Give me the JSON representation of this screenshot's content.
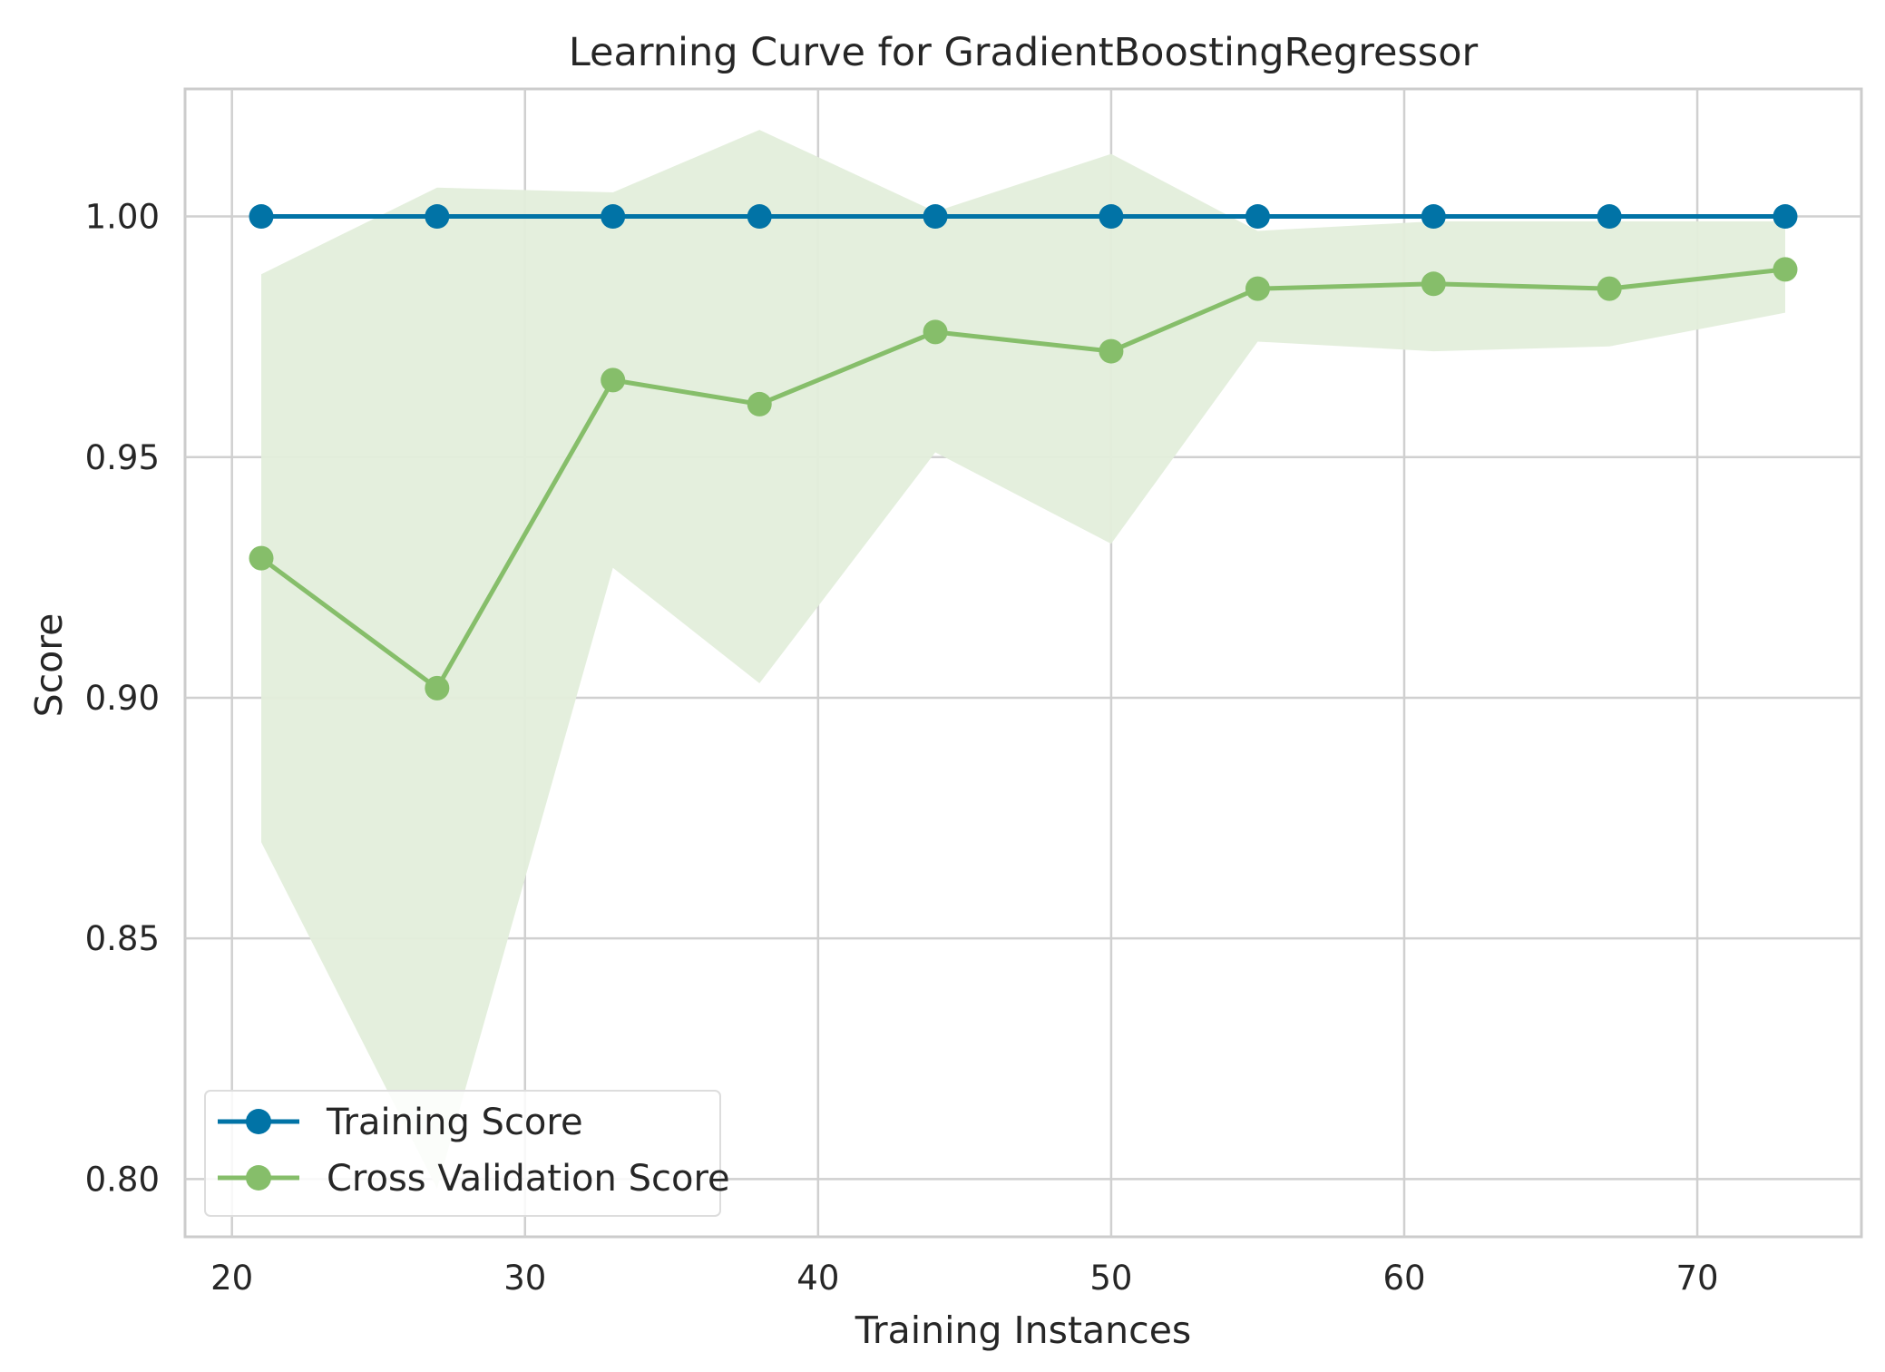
{
  "chart_data": {
    "type": "line",
    "title": "Learning Curve for GradientBoostingRegressor",
    "xlabel": "Training Instances",
    "ylabel": "Score",
    "xlim": [
      18.4,
      75.6
    ],
    "ylim": [
      0.788,
      1.0265
    ],
    "xticks": [
      20,
      30,
      40,
      50,
      60,
      70
    ],
    "xtick_labels": [
      "20",
      "30",
      "40",
      "50",
      "60",
      "70"
    ],
    "yticks": [
      0.8,
      0.85,
      0.9,
      0.95,
      1.0
    ],
    "ytick_labels": [
      "0.80",
      "0.85",
      "0.90",
      "0.95",
      "1.00"
    ],
    "grid": true,
    "legend_position": "lower-left",
    "x": [
      21,
      27,
      33,
      38,
      44,
      50,
      55,
      61,
      67,
      73
    ],
    "series": [
      {
        "name": "Training Score",
        "color": "#0173a6",
        "values": [
          1.0,
          1.0,
          1.0,
          1.0,
          1.0,
          1.0,
          1.0,
          1.0,
          1.0,
          1.0
        ],
        "band_upper": [
          1.0,
          1.0,
          1.0,
          1.0,
          1.0,
          1.0,
          1.0,
          1.0,
          1.0,
          1.0
        ],
        "band_lower": [
          1.0,
          1.0,
          1.0,
          1.0,
          1.0,
          1.0,
          1.0,
          1.0,
          1.0,
          1.0
        ]
      },
      {
        "name": "Cross Validation Score",
        "color": "#86be6a",
        "band_color": "#e3eedb",
        "values": [
          0.929,
          0.902,
          0.966,
          0.961,
          0.976,
          0.972,
          0.985,
          0.986,
          0.985,
          0.989
        ],
        "band_upper": [
          0.988,
          1.006,
          1.005,
          1.018,
          1.001,
          1.013,
          0.997,
          0.999,
          0.999,
          0.999
        ],
        "band_lower": [
          0.87,
          0.798,
          0.927,
          0.903,
          0.951,
          0.932,
          0.974,
          0.972,
          0.973,
          0.98
        ]
      }
    ]
  }
}
